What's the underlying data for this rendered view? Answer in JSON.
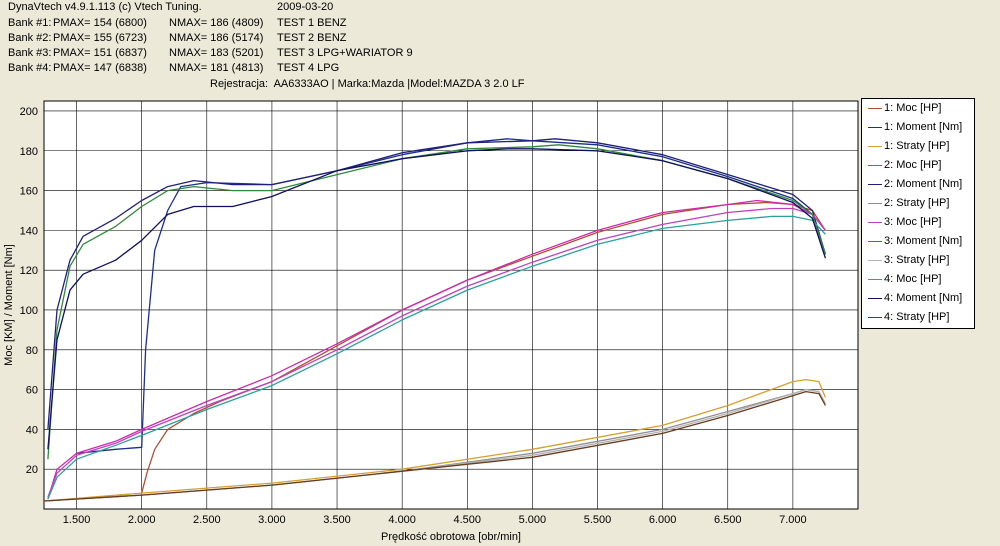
{
  "header": {
    "software": "DynaVtech v4.9.1.113 (c) Vtech Tuning.",
    "date": "2009-03-20",
    "banks": [
      {
        "bank": "Bank #1:",
        "pmax": "PMAX= 154 (6800)",
        "nmax": "NMAX= 186 (4809)",
        "test": "TEST 1 BENZ"
      },
      {
        "bank": "Bank #2:",
        "pmax": "PMAX= 155 (6723)",
        "nmax": "NMAX= 186 (5174)",
        "test": "TEST 2 BENZ"
      },
      {
        "bank": "Bank #3:",
        "pmax": "PMAX= 151 (6837)",
        "nmax": "NMAX= 183 (5201)",
        "test": "TEST 3 LPG+WARIATOR 9"
      },
      {
        "bank": "Bank #4:",
        "pmax": "PMAX= 147 (6838)",
        "nmax": "NMAX= 181 (4813)",
        "test": "TEST 4 LPG"
      }
    ],
    "registration": "Rejestracja:  AA6333AO | Marka:Mazda |Model:MAZDA 3 2.0 LF"
  },
  "chart_data": {
    "type": "line",
    "xlabel": "Prędkość obrotowa [obr/min]",
    "ylabel": "Moc [KM] / Moment [Nm]",
    "xlim": [
      1250,
      7500
    ],
    "ylim": [
      0,
      205
    ],
    "xticks": [
      1500,
      2000,
      2500,
      3000,
      3500,
      4000,
      4500,
      5000,
      5500,
      6000,
      6500,
      7000
    ],
    "xtick_labels": [
      "1.500",
      "2.000",
      "2.500",
      "3.000",
      "3.500",
      "4.000",
      "4.500",
      "5.000",
      "5.500",
      "6.000",
      "6.500",
      "7.000"
    ],
    "yticks": [
      20,
      40,
      60,
      80,
      100,
      120,
      140,
      160,
      180,
      200
    ],
    "ytick_labels": [
      "20",
      "40",
      "60",
      "80",
      "100",
      "120",
      "140",
      "160",
      "180",
      "200"
    ],
    "grid": true,
    "legend_position": "right",
    "series": [
      {
        "name": "1: Moc [HP]",
        "color": "#b05030",
        "points": [
          [
            2000,
            8
          ],
          [
            2040,
            18
          ],
          [
            2100,
            30
          ],
          [
            2200,
            40
          ],
          [
            2400,
            48
          ],
          [
            2600,
            54
          ],
          [
            3000,
            64
          ],
          [
            3500,
            82
          ],
          [
            4000,
            100
          ],
          [
            4500,
            115
          ],
          [
            5000,
            127
          ],
          [
            5500,
            139
          ],
          [
            6000,
            148
          ],
          [
            6500,
            153
          ],
          [
            6800,
            154
          ],
          [
            7000,
            153
          ],
          [
            7150,
            150
          ],
          [
            7250,
            140
          ]
        ]
      },
      {
        "name": "1: Moment [Nm]",
        "color": "#1c2f8a",
        "points": [
          [
            1500,
            28
          ],
          [
            1800,
            30
          ],
          [
            2000,
            31
          ],
          [
            2030,
            80
          ],
          [
            2100,
            130
          ],
          [
            2200,
            150
          ],
          [
            2300,
            162
          ],
          [
            2500,
            164
          ],
          [
            3000,
            163
          ],
          [
            3500,
            170
          ],
          [
            4000,
            178
          ],
          [
            4500,
            184
          ],
          [
            4809,
            186
          ],
          [
            5000,
            185
          ],
          [
            5500,
            183
          ],
          [
            6000,
            177
          ],
          [
            6500,
            167
          ],
          [
            7000,
            156
          ],
          [
            7150,
            148
          ],
          [
            7250,
            128
          ]
        ]
      },
      {
        "name": "1: Straty [HP]",
        "color": "#d4a030",
        "points": [
          [
            1250,
            4
          ],
          [
            2000,
            8
          ],
          [
            3000,
            13
          ],
          [
            4000,
            20
          ],
          [
            5000,
            30
          ],
          [
            6000,
            42
          ],
          [
            6500,
            52
          ],
          [
            7000,
            64
          ],
          [
            7100,
            65
          ],
          [
            7200,
            64
          ],
          [
            7250,
            56
          ]
        ]
      },
      {
        "name": "2: Moc [HP]",
        "color": "#d02ab0",
        "points": [
          [
            1280,
            5
          ],
          [
            1350,
            20
          ],
          [
            1500,
            28
          ],
          [
            1800,
            34
          ],
          [
            2000,
            40
          ],
          [
            2500,
            54
          ],
          [
            3000,
            67
          ],
          [
            3500,
            83
          ],
          [
            4000,
            100
          ],
          [
            4500,
            115
          ],
          [
            5000,
            128
          ],
          [
            5500,
            140
          ],
          [
            6000,
            149
          ],
          [
            6500,
            153
          ],
          [
            6723,
            155
          ],
          [
            7000,
            153
          ],
          [
            7150,
            148
          ],
          [
            7250,
            140
          ]
        ]
      },
      {
        "name": "2: Moment [Nm]",
        "color": "#20207a",
        "points": [
          [
            1280,
            40
          ],
          [
            1350,
            100
          ],
          [
            1450,
            125
          ],
          [
            1550,
            137
          ],
          [
            1800,
            146
          ],
          [
            2000,
            155
          ],
          [
            2200,
            162
          ],
          [
            2400,
            165
          ],
          [
            2700,
            163
          ],
          [
            3000,
            163
          ],
          [
            3500,
            170
          ],
          [
            4000,
            179
          ],
          [
            4500,
            184
          ],
          [
            5000,
            185
          ],
          [
            5174,
            186
          ],
          [
            5500,
            184
          ],
          [
            6000,
            178
          ],
          [
            6500,
            168
          ],
          [
            7000,
            158
          ],
          [
            7150,
            150
          ],
          [
            7250,
            128
          ]
        ]
      },
      {
        "name": "2: Straty [HP]",
        "color": "#909090",
        "points": [
          [
            1250,
            4
          ],
          [
            2000,
            7
          ],
          [
            3000,
            12
          ],
          [
            4000,
            19
          ],
          [
            5000,
            28
          ],
          [
            6000,
            40
          ],
          [
            6500,
            49
          ],
          [
            7000,
            58
          ],
          [
            7100,
            60
          ],
          [
            7200,
            59
          ],
          [
            7250,
            53
          ]
        ]
      },
      {
        "name": "3: Moc [HP]",
        "color": "#c040c0",
        "points": [
          [
            1280,
            6
          ],
          [
            1350,
            18
          ],
          [
            1500,
            27
          ],
          [
            1800,
            33
          ],
          [
            2000,
            39
          ],
          [
            2500,
            52
          ],
          [
            3000,
            64
          ],
          [
            3500,
            80
          ],
          [
            4000,
            97
          ],
          [
            4500,
            112
          ],
          [
            5000,
            124
          ],
          [
            5500,
            135
          ],
          [
            6000,
            143
          ],
          [
            6500,
            149
          ],
          [
            6837,
            151
          ],
          [
            7000,
            151
          ],
          [
            7150,
            148
          ],
          [
            7250,
            140
          ]
        ]
      },
      {
        "name": "3: Moment [Nm]",
        "color": "#2e8a3a",
        "points": [
          [
            1280,
            25
          ],
          [
            1350,
            90
          ],
          [
            1450,
            122
          ],
          [
            1550,
            133
          ],
          [
            1800,
            142
          ],
          [
            2000,
            152
          ],
          [
            2200,
            160
          ],
          [
            2400,
            162
          ],
          [
            2700,
            160
          ],
          [
            3000,
            160
          ],
          [
            3500,
            168
          ],
          [
            4000,
            176
          ],
          [
            4500,
            181
          ],
          [
            5000,
            182
          ],
          [
            5201,
            183
          ],
          [
            5500,
            181
          ],
          [
            6000,
            175
          ],
          [
            6500,
            166
          ],
          [
            7000,
            155
          ],
          [
            7150,
            148
          ],
          [
            7250,
            128
          ]
        ]
      },
      {
        "name": "3: Straty [HP]",
        "color": "#b4b4b4",
        "points": [
          [
            1250,
            4
          ],
          [
            2000,
            7
          ],
          [
            3000,
            12
          ],
          [
            4000,
            19
          ],
          [
            5000,
            27
          ],
          [
            6000,
            39
          ],
          [
            6500,
            48
          ],
          [
            7000,
            58
          ],
          [
            7100,
            60
          ],
          [
            7200,
            59
          ],
          [
            7250,
            53
          ]
        ]
      },
      {
        "name": "4: Moc [HP]",
        "color": "#2aa0a0",
        "points": [
          [
            1280,
            5
          ],
          [
            1350,
            16
          ],
          [
            1500,
            25
          ],
          [
            1800,
            32
          ],
          [
            2000,
            37
          ],
          [
            2500,
            50
          ],
          [
            3000,
            62
          ],
          [
            3500,
            78
          ],
          [
            4000,
            95
          ],
          [
            4500,
            110
          ],
          [
            5000,
            122
          ],
          [
            5500,
            133
          ],
          [
            6000,
            141
          ],
          [
            6500,
            145
          ],
          [
            6838,
            147
          ],
          [
            7000,
            147
          ],
          [
            7150,
            145
          ],
          [
            7250,
            138
          ]
        ]
      },
      {
        "name": "4: Moment [Nm]",
        "color": "#101060",
        "points": [
          [
            1280,
            30
          ],
          [
            1350,
            85
          ],
          [
            1450,
            110
          ],
          [
            1550,
            118
          ],
          [
            1800,
            125
          ],
          [
            2000,
            135
          ],
          [
            2200,
            148
          ],
          [
            2400,
            152
          ],
          [
            2700,
            152
          ],
          [
            3000,
            157
          ],
          [
            3500,
            170
          ],
          [
            4000,
            176
          ],
          [
            4500,
            180
          ],
          [
            4813,
            181
          ],
          [
            5000,
            181
          ],
          [
            5500,
            180
          ],
          [
            6000,
            175
          ],
          [
            6500,
            166
          ],
          [
            7000,
            154
          ],
          [
            7150,
            146
          ],
          [
            7250,
            126
          ]
        ]
      },
      {
        "name": "4: Straty [HP]",
        "color": "#6a3a1a",
        "points": [
          [
            1250,
            4
          ],
          [
            2000,
            7
          ],
          [
            3000,
            12
          ],
          [
            4000,
            19
          ],
          [
            5000,
            26
          ],
          [
            6000,
            38
          ],
          [
            6500,
            47
          ],
          [
            7000,
            57
          ],
          [
            7100,
            59
          ],
          [
            7200,
            58
          ],
          [
            7250,
            52
          ]
        ]
      }
    ]
  }
}
